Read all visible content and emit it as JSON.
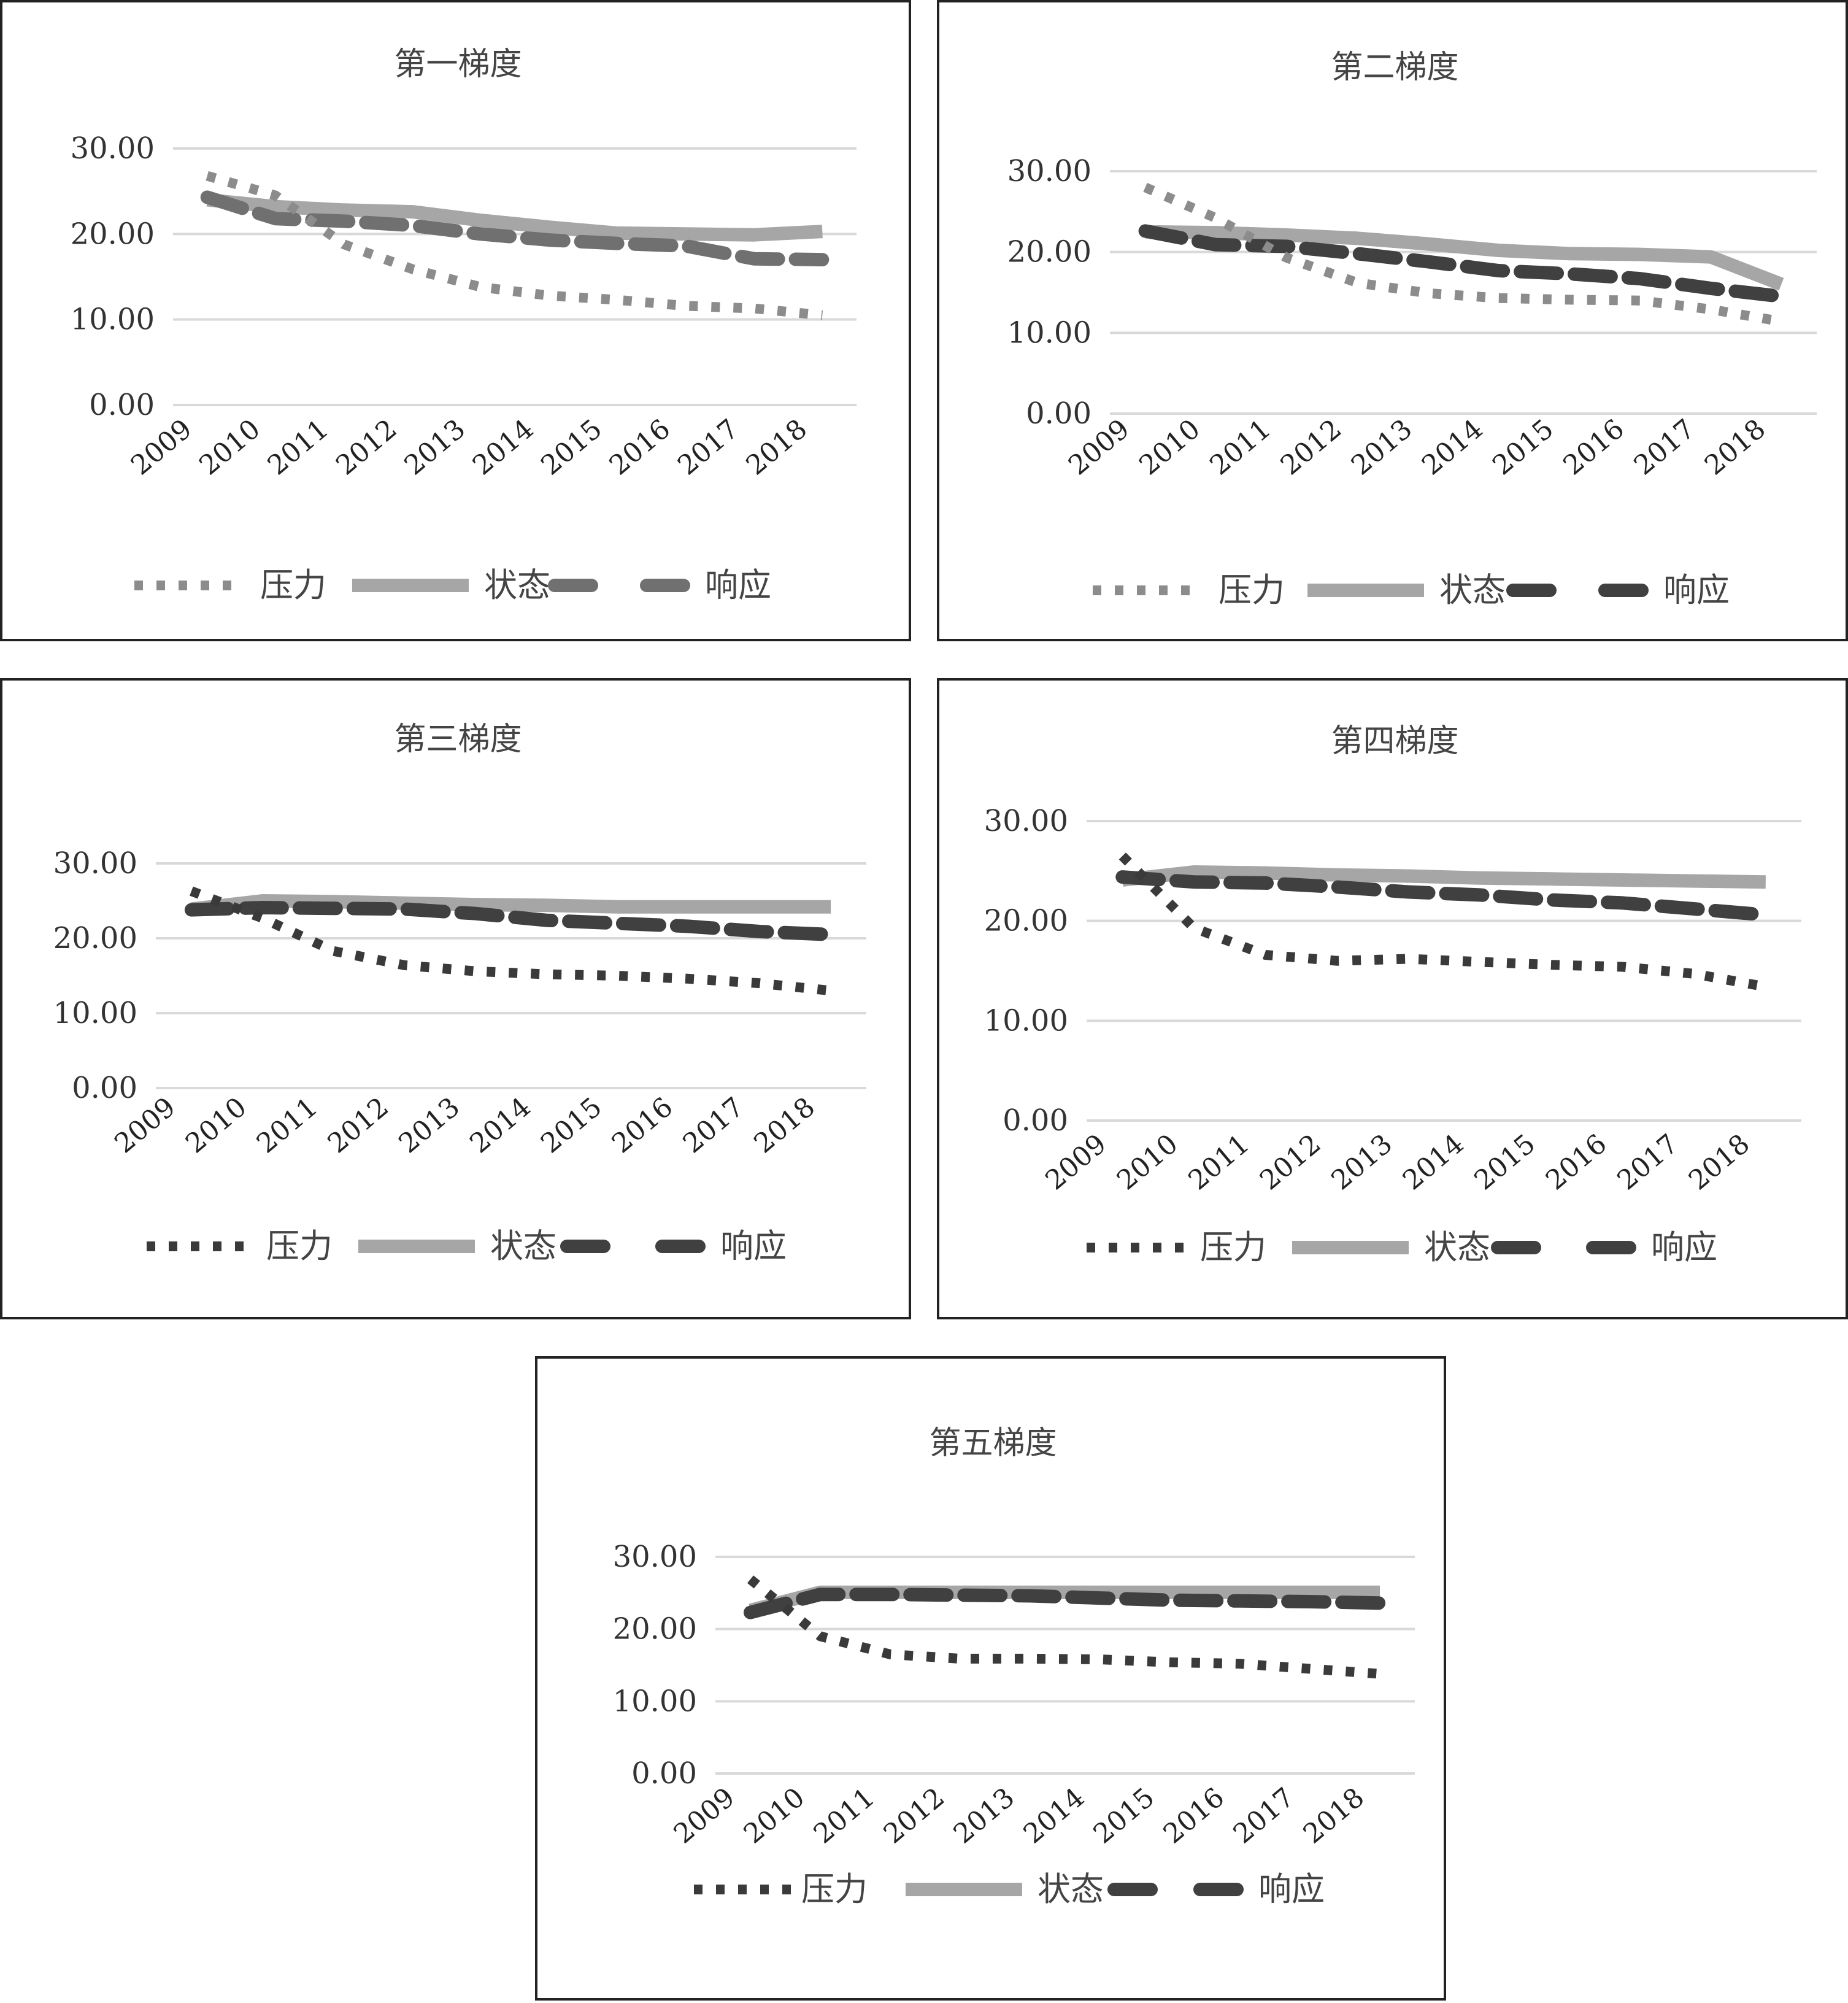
{
  "colors": {
    "pressure_light": "#8c8c8c",
    "pressure_dark": "#3a3a3a",
    "state": "#a6a6a6",
    "response_light": "#707070",
    "response_dark": "#404040",
    "grid": "#d9d9d9"
  },
  "chart_data": [
    {
      "type": "line",
      "title": "第一梯度",
      "categories": [
        "2009",
        "2010",
        "2011",
        "2012",
        "2013",
        "2014",
        "2015",
        "2016",
        "2017",
        "2018"
      ],
      "yticks": [
        "30.00",
        "20.00",
        "10.00",
        "0.00"
      ],
      "ylim": [
        0,
        30
      ],
      "grid": true,
      "legend_position": "bottom",
      "series": [
        {
          "name": "压力",
          "style": "dotted",
          "values": [
            26.8,
            24.5,
            18.8,
            15.9,
            13.8,
            12.8,
            12.3,
            11.6,
            11.3,
            10.5
          ]
        },
        {
          "name": "状态",
          "style": "solid",
          "values": [
            24.0,
            23.2,
            22.8,
            22.6,
            21.6,
            20.8,
            20.1,
            20.0,
            19.9,
            20.3
          ]
        },
        {
          "name": "响应",
          "style": "dashed",
          "values": [
            24.3,
            21.8,
            21.5,
            21.0,
            20.0,
            19.3,
            18.9,
            18.6,
            17.1,
            17.0
          ]
        }
      ]
    },
    {
      "type": "line",
      "title": "第二梯度",
      "categories": [
        "2009",
        "2010",
        "2011",
        "2012",
        "2013",
        "2014",
        "2015",
        "2016",
        "2017",
        "2018"
      ],
      "yticks": [
        "30.00",
        "20.00",
        "10.00",
        "0.00"
      ],
      "ylim": [
        0,
        30
      ],
      "grid": true,
      "legend_position": "bottom",
      "series": [
        {
          "name": "压力",
          "style": "dotted",
          "values": [
            28.0,
            24.2,
            19.3,
            16.2,
            14.9,
            14.3,
            14.1,
            14.0,
            12.9,
            11.4
          ]
        },
        {
          "name": "状态",
          "style": "solid",
          "values": [
            22.5,
            22.4,
            22.1,
            21.7,
            21.0,
            20.2,
            19.8,
            19.7,
            19.4,
            16.0
          ]
        },
        {
          "name": "响应",
          "style": "dashed",
          "values": [
            22.6,
            20.9,
            20.7,
            19.8,
            18.8,
            17.7,
            17.3,
            16.7,
            15.5,
            14.5
          ]
        }
      ]
    },
    {
      "type": "line",
      "title": "第三梯度",
      "categories": [
        "2009",
        "2010",
        "2011",
        "2012",
        "2013",
        "2014",
        "2015",
        "2016",
        "2017",
        "2018"
      ],
      "yticks": [
        "30.00",
        "20.00",
        "10.00",
        "0.00"
      ],
      "ylim": [
        0,
        30
      ],
      "grid": true,
      "legend_position": "bottom",
      "series": [
        {
          "name": "压力",
          "style": "dotted",
          "values": [
            26.3,
            22.7,
            18.3,
            16.4,
            15.6,
            15.2,
            15.0,
            14.6,
            14.0,
            13.0
          ]
        },
        {
          "name": "状态",
          "style": "solid",
          "values": [
            23.9,
            25.0,
            24.9,
            24.7,
            24.5,
            24.4,
            24.2,
            24.2,
            24.2,
            24.2
          ]
        },
        {
          "name": "响应",
          "style": "dashed",
          "values": [
            23.8,
            24.1,
            24.0,
            23.9,
            23.3,
            22.4,
            22.0,
            21.6,
            20.9,
            20.5
          ]
        }
      ]
    },
    {
      "type": "line",
      "title": "第四梯度",
      "categories": [
        "2009",
        "2010",
        "2011",
        "2012",
        "2013",
        "2014",
        "2015",
        "2016",
        "2017",
        "2018"
      ],
      "yticks": [
        "30.00",
        "20.00",
        "10.00",
        "0.00"
      ],
      "ylim": [
        0,
        30
      ],
      "grid": true,
      "legend_position": "bottom",
      "series": [
        {
          "name": "压力",
          "style": "dotted",
          "values": [
            26.5,
            19.3,
            16.6,
            16.0,
            16.2,
            15.9,
            15.6,
            15.4,
            14.7,
            13.4
          ]
        },
        {
          "name": "状态",
          "style": "solid",
          "values": [
            24.1,
            24.9,
            24.8,
            24.6,
            24.5,
            24.3,
            24.2,
            24.1,
            24.0,
            23.9
          ]
        },
        {
          "name": "响应",
          "style": "dashed",
          "values": [
            24.4,
            23.9,
            23.8,
            23.4,
            22.9,
            22.6,
            22.1,
            21.8,
            21.2,
            20.6
          ]
        }
      ]
    },
    {
      "type": "line",
      "title": "第五梯度",
      "categories": [
        "2009",
        "2010",
        "2011",
        "2012",
        "2013",
        "2014",
        "2015",
        "2016",
        "2017",
        "2018"
      ],
      "yticks": [
        "30.00",
        "20.00",
        "10.00",
        "0.00"
      ],
      "ylim": [
        0,
        30
      ],
      "grid": true,
      "legend_position": "bottom",
      "series": [
        {
          "name": "压力",
          "style": "dotted",
          "values": [
            26.9,
            19.0,
            16.5,
            15.9,
            15.9,
            15.8,
            15.4,
            15.2,
            14.5,
            13.8
          ]
        },
        {
          "name": "状态",
          "style": "solid",
          "values": [
            22.6,
            25.1,
            25.1,
            25.1,
            25.1,
            25.1,
            25.1,
            25.1,
            25.1,
            25.1
          ]
        },
        {
          "name": "响应",
          "style": "dashed",
          "values": [
            22.3,
            24.8,
            24.8,
            24.7,
            24.6,
            24.3,
            24.0,
            23.9,
            23.8,
            23.6
          ]
        }
      ]
    }
  ]
}
